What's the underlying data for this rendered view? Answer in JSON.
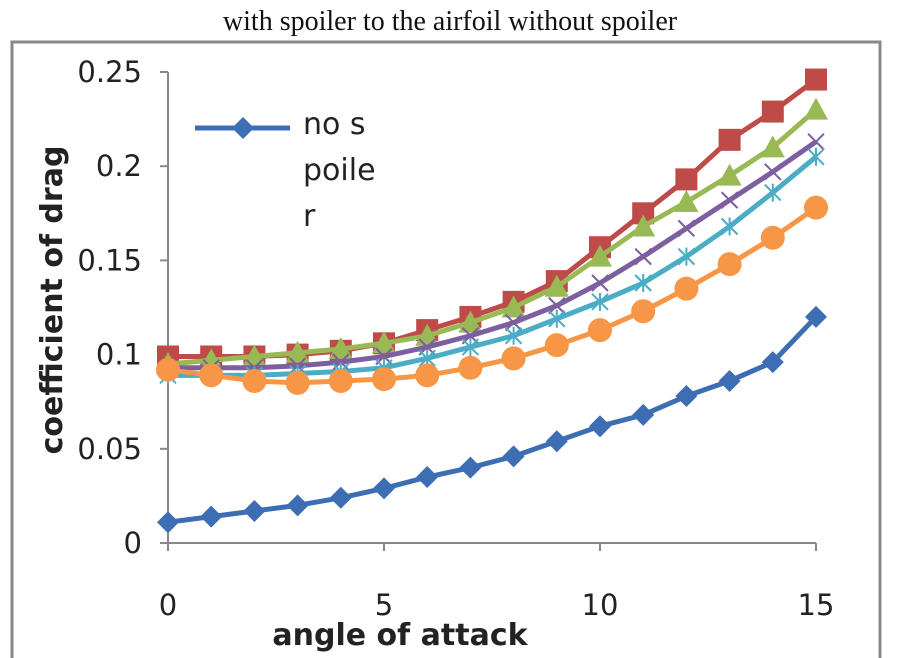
{
  "chart_data": {
    "type": "line",
    "title": "with spoiler to the airfoil without spoiler",
    "x_label": "angle of attack",
    "y_label": "coefficient of drag",
    "x": [
      0,
      1,
      2,
      3,
      4,
      5,
      6,
      7,
      8,
      9,
      10,
      11,
      12,
      13,
      14,
      15
    ],
    "xlim": [
      0,
      15
    ],
    "xticks": [
      0,
      5,
      10,
      15
    ],
    "ylim": [
      0,
      0.25
    ],
    "yticks": [
      0,
      0.05,
      0.1,
      0.15,
      0.2,
      0.25
    ],
    "grid": false,
    "legend": "upper left",
    "series": [
      {
        "name": "no spoiler",
        "color": "#3d6eb4",
        "marker": "diamond",
        "values": [
          0.011,
          0.014,
          0.017,
          0.02,
          0.024,
          0.029,
          0.035,
          0.04,
          0.046,
          0.054,
          0.062,
          0.068,
          0.078,
          0.086,
          0.096,
          0.12
        ]
      },
      {
        "color": "#be4b48",
        "marker": "square",
        "values": [
          0.099,
          0.099,
          0.099,
          0.1,
          0.102,
          0.106,
          0.113,
          0.12,
          0.128,
          0.139,
          0.157,
          0.175,
          0.193,
          0.214,
          0.229,
          0.246
        ]
      },
      {
        "color": "#98b954",
        "marker": "triangle",
        "values": [
          0.095,
          0.097,
          0.099,
          0.101,
          0.103,
          0.106,
          0.11,
          0.117,
          0.125,
          0.136,
          0.152,
          0.168,
          0.181,
          0.195,
          0.21,
          0.23
        ]
      },
      {
        "color": "#7d5fa0",
        "marker": "x",
        "values": [
          0.093,
          0.093,
          0.093,
          0.094,
          0.096,
          0.099,
          0.104,
          0.11,
          0.117,
          0.126,
          0.138,
          0.152,
          0.167,
          0.182,
          0.197,
          0.213
        ]
      },
      {
        "color": "#4bacc6",
        "marker": "star",
        "values": [
          0.089,
          0.089,
          0.089,
          0.09,
          0.091,
          0.093,
          0.098,
          0.104,
          0.11,
          0.119,
          0.128,
          0.138,
          0.152,
          0.168,
          0.186,
          0.205
        ]
      },
      {
        "color": "#f79646",
        "marker": "circle",
        "values": [
          0.092,
          0.089,
          0.086,
          0.085,
          0.086,
          0.087,
          0.089,
          0.093,
          0.098,
          0.105,
          0.113,
          0.123,
          0.135,
          0.148,
          0.162,
          0.178
        ]
      }
    ]
  }
}
